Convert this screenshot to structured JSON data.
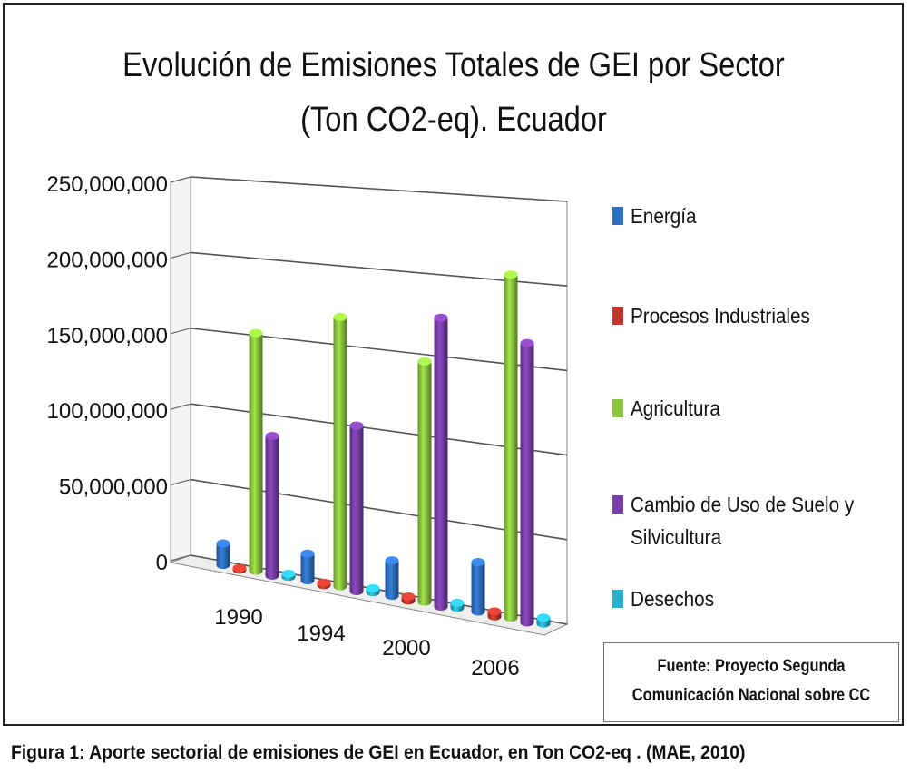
{
  "figure": {
    "title_line1": "Evolución de Emisiones Totales de GEI por Sector",
    "title_line2": "(Ton CO2-eq).  Ecuador",
    "source_line1": "Fuente: Proyecto Segunda",
    "source_line2": "Comunicación Nacional sobre CC",
    "caption": "Figura 1: Aporte sectorial de emisiones de GEI en Ecuador, en Ton CO2-eq . (MAE, 2010)"
  },
  "chart_data": {
    "type": "bar",
    "title": "Evolución de Emisiones Totales de GEI por Sector (Ton CO2-eq).  Ecuador",
    "categories": [
      "1990",
      "1994",
      "2000",
      "2006"
    ],
    "yticks": [
      "0",
      "50,000,000",
      "100,000,000",
      "150,000,000",
      "200,000,000",
      "250,000,000"
    ],
    "ylim": [
      0,
      250000000
    ],
    "grid": true,
    "legend_position": "right",
    "series": [
      {
        "name": "Energía",
        "color": "#2f6fc1",
        "values": [
          14000000,
          17000000,
          22000000,
          30000000
        ]
      },
      {
        "name": "Procesos Industriales",
        "color": "#c0362c",
        "values": [
          1000000,
          1500000,
          2500000,
          3000000
        ]
      },
      {
        "name": "Agricultura",
        "color": "#8cc63f",
        "values": [
          154000000,
          170000000,
          148000000,
          206000000
        ]
      },
      {
        "name": "Cambio de Uso de Suelo y Silvicultura",
        "color": "#7a3fa8",
        "values": [
          90000000,
          104000000,
          177000000,
          167000000
        ]
      },
      {
        "name": "Desechos",
        "color": "#29b1cc",
        "values": [
          2000000,
          2500000,
          3000000,
          3500000
        ]
      }
    ]
  }
}
